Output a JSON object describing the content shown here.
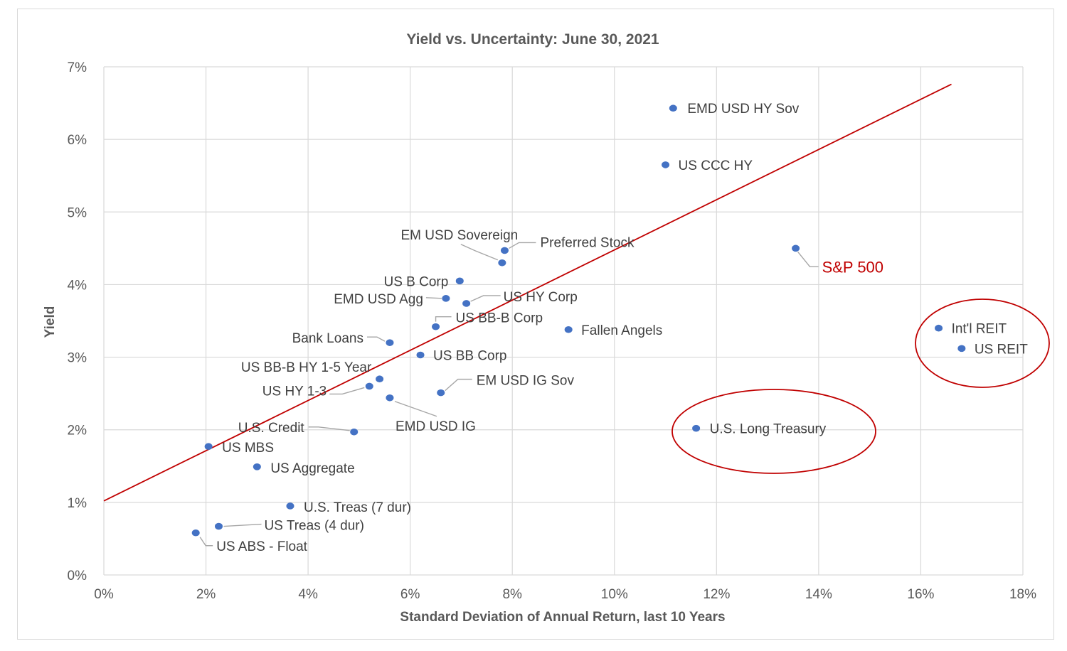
{
  "chart_data": {
    "type": "scatter",
    "title": "Yield vs. Uncertainty: June 30, 2021",
    "xlabel": "Standard Deviation of Annual Return, last 10 Years",
    "ylabel": "Yield",
    "xlim": [
      0,
      18
    ],
    "ylim": [
      0,
      7
    ],
    "x_ticks": [
      "0%",
      "2%",
      "4%",
      "6%",
      "8%",
      "10%",
      "12%",
      "14%",
      "16%",
      "18%"
    ],
    "y_ticks": [
      "0%",
      "1%",
      "2%",
      "3%",
      "4%",
      "5%",
      "6%",
      "7%"
    ],
    "grid": true,
    "point_color": "#4472c4",
    "trendline": {
      "color": "#c00000",
      "x": [
        0,
        16.6
      ],
      "y": [
        1.02,
        6.76
      ]
    },
    "highlight_color": "#c00000",
    "points": [
      {
        "label": "EMD USD HY Sov",
        "x": 11.15,
        "y": 6.43
      },
      {
        "label": "US CCC HY",
        "x": 11.0,
        "y": 5.65
      },
      {
        "label": "Preferred Stock",
        "x": 7.85,
        "y": 4.47
      },
      {
        "label": "EM USD Sovereign",
        "x": 7.8,
        "y": 4.3
      },
      {
        "label": "S&P 500",
        "x": 13.55,
        "y": 4.5,
        "highlight": true
      },
      {
        "label": "US B Corp",
        "x": 6.97,
        "y": 4.05
      },
      {
        "label": "EMD USD Agg",
        "x": 6.7,
        "y": 3.81
      },
      {
        "label": "US HY Corp",
        "x": 7.1,
        "y": 3.74
      },
      {
        "label": "US BB-B Corp",
        "x": 6.5,
        "y": 3.42
      },
      {
        "label": "Fallen Angels",
        "x": 9.1,
        "y": 3.38
      },
      {
        "label": "Bank Loans",
        "x": 5.6,
        "y": 3.2
      },
      {
        "label": "US BB Corp",
        "x": 6.2,
        "y": 3.03
      },
      {
        "label": "US BB-B HY 1-5 Year",
        "x": 5.4,
        "y": 2.7
      },
      {
        "label": "US HY 1-3",
        "x": 5.2,
        "y": 2.6
      },
      {
        "label": "EM USD IG Sov",
        "x": 6.6,
        "y": 2.51
      },
      {
        "label": "EMD USD IG",
        "x": 5.6,
        "y": 2.44
      },
      {
        "label": "U.S. Credit",
        "x": 4.9,
        "y": 1.97
      },
      {
        "label": "US MBS",
        "x": 2.05,
        "y": 1.77
      },
      {
        "label": "US Aggregate",
        "x": 3.0,
        "y": 1.49
      },
      {
        "label": "U.S. Treas (7 dur)",
        "x": 3.65,
        "y": 0.95
      },
      {
        "label": "US Treas (4 dur)",
        "x": 2.25,
        "y": 0.67
      },
      {
        "label": "US ABS - Float",
        "x": 1.8,
        "y": 0.58
      },
      {
        "label": "U.S. Long Treasury",
        "x": 11.6,
        "y": 2.02
      },
      {
        "label": "Int'l REIT",
        "x": 16.35,
        "y": 3.4
      },
      {
        "label": "US REIT",
        "x": 16.8,
        "y": 3.12
      }
    ]
  }
}
